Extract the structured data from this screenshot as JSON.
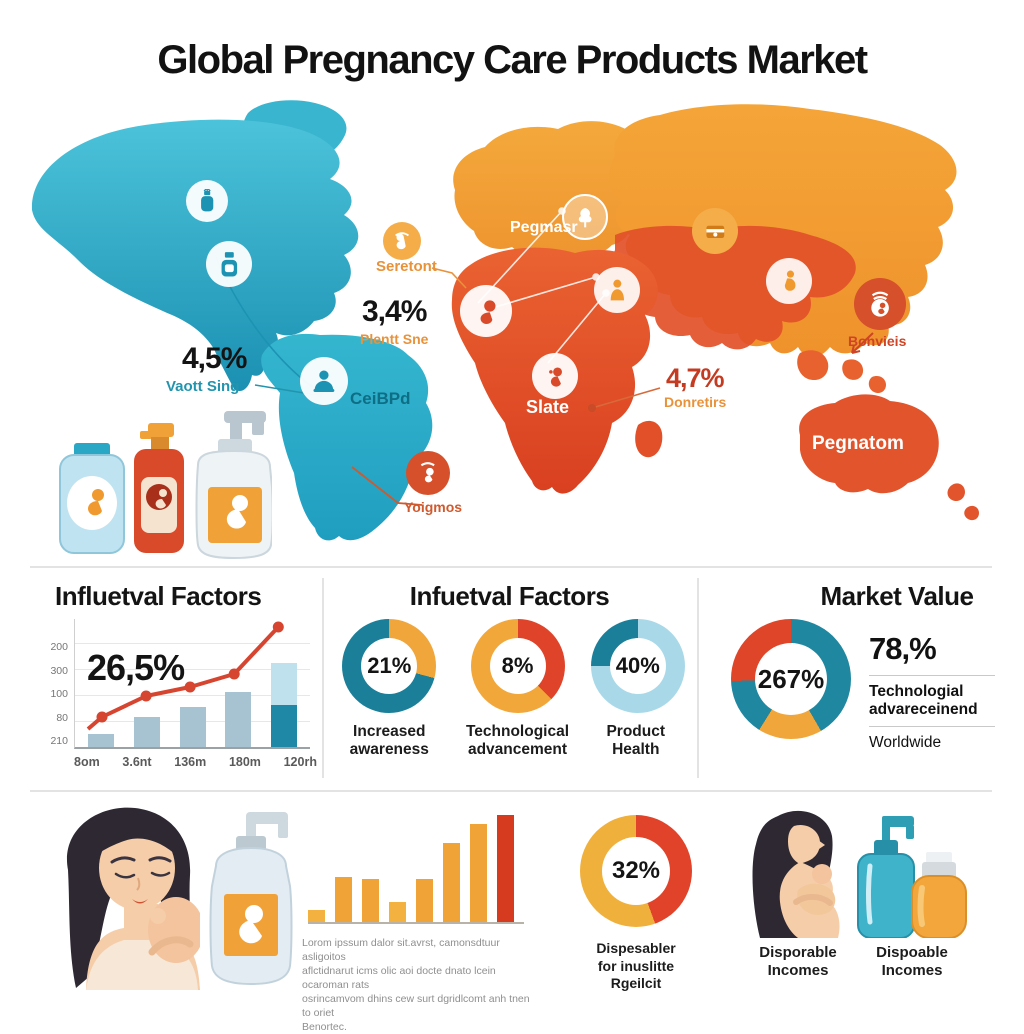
{
  "title": "Global Pregnancy Care Products Market",
  "colors": {
    "teal": "#2aa7c5",
    "orange": "#f09a30",
    "red_orange": "#d94a2b",
    "line_red": "#d64530",
    "bar_blue": "#a7c2d0"
  },
  "map": {
    "na_value": "4,5%",
    "na_label": "Vaott Sing",
    "west_icon_label": "Seretont",
    "west_value": "3,4%",
    "west_label": "Plentt Sne",
    "europe_label": "Pegmasr",
    "sa_label": "CeiBPd",
    "africa_label": "Slate",
    "africa_value": "4,7%",
    "africa_stat_label": "Donretirs",
    "asia_label": "Bonvieis",
    "australia_label": "Pegnatom",
    "south_label": "Yoigmos"
  },
  "factors_left": {
    "heading": "Influetval Factors",
    "highlight": "26,5%"
  },
  "factors_mid": {
    "heading": "Infuetval Factors"
  },
  "market": {
    "heading": "Market Value",
    "value": "78,%",
    "line1": "Technologial",
    "line2": "advareceinend",
    "line3": "Worldwide"
  },
  "bottom": {
    "lorem": [
      "Lorom ipssum dalor sit.avrst, camonsdtuur asligoitos",
      "aflctidnarut icms olic aoi docte dnato lcein ocaroman rats",
      "osrincamvom dhins cew surt dgridlcomt anh tnen to oriet",
      "Benortec."
    ],
    "donut_label": [
      "Dispesabler",
      "for inuslitte",
      "Rgeilcit"
    ],
    "mother_label": [
      "Disporable",
      "Incomes"
    ],
    "bottles_label": [
      "Dispoable",
      "Incomes"
    ]
  },
  "chart_data": [
    {
      "id": "influence_combo",
      "type": "bar",
      "title": "Influetval Factors",
      "annotation": "26,5%",
      "categories": [
        "8om",
        "3.6nt",
        "136m",
        "180m",
        "120rh"
      ],
      "y_ticks_top_to_bottom": [
        "200",
        "300",
        "100",
        "80",
        "210"
      ],
      "axis_max": 128,
      "bar_color": "#a7c2d0",
      "last_bar_colors": [
        "#bfe0ed",
        "#1e88a6"
      ],
      "series": [
        {
          "name": "bars",
          "type": "bar",
          "values": [
            13,
            30,
            40,
            55,
            84
          ]
        },
        {
          "name": "trend",
          "type": "line",
          "color": "#d64530",
          "values": [
            30,
            51,
            60,
            73,
            120
          ]
        }
      ]
    },
    {
      "id": "awareness",
      "type": "donut",
      "value_label": "21%",
      "label": "Increased awareness",
      "segments": [
        {
          "color": "#f0a63a",
          "to_deg": 105
        },
        {
          "color": "#1b7f99",
          "to_deg": 360
        }
      ]
    },
    {
      "id": "tech",
      "type": "donut",
      "value_label": "8%",
      "label": "Technological advancement",
      "segments": [
        {
          "color": "#df432a",
          "to_deg": 135
        },
        {
          "color": "#f2a73b",
          "to_deg": 360
        }
      ]
    },
    {
      "id": "product",
      "type": "donut",
      "value_label": "40%",
      "label": "Product Health",
      "segments": [
        {
          "color": "#a9d9e9",
          "to_deg": 270
        },
        {
          "color": "#1b7f99",
          "to_deg": 360
        }
      ]
    },
    {
      "id": "market",
      "type": "donut",
      "value_label": "267%",
      "label": "Market Value",
      "segments": [
        {
          "color": "#1f87a0",
          "to_deg": 150
        },
        {
          "color": "#f0a63a",
          "to_deg": 212
        },
        {
          "color": "#1f87a0",
          "to_deg": 268
        },
        {
          "color": "#df4528",
          "to_deg": 360
        }
      ]
    },
    {
      "id": "disposable",
      "type": "donut",
      "value_label": "32%",
      "label": "Dispesabler for inuslitte Rgeilcit",
      "segments": [
        {
          "color": "#e0432a",
          "to_deg": 160
        },
        {
          "color": "#f0b03c",
          "to_deg": 360
        }
      ]
    },
    {
      "id": "income_bars",
      "type": "bar",
      "axis_max": 105,
      "values": [
        11,
        43,
        41,
        19,
        41,
        75,
        94,
        102
      ],
      "colors": [
        "#f3b23f",
        "#f0a437",
        "#f0a437",
        "#f3b23f",
        "#f0a437",
        "#f0a437",
        "#f0a437",
        "#d63a1f"
      ]
    }
  ]
}
